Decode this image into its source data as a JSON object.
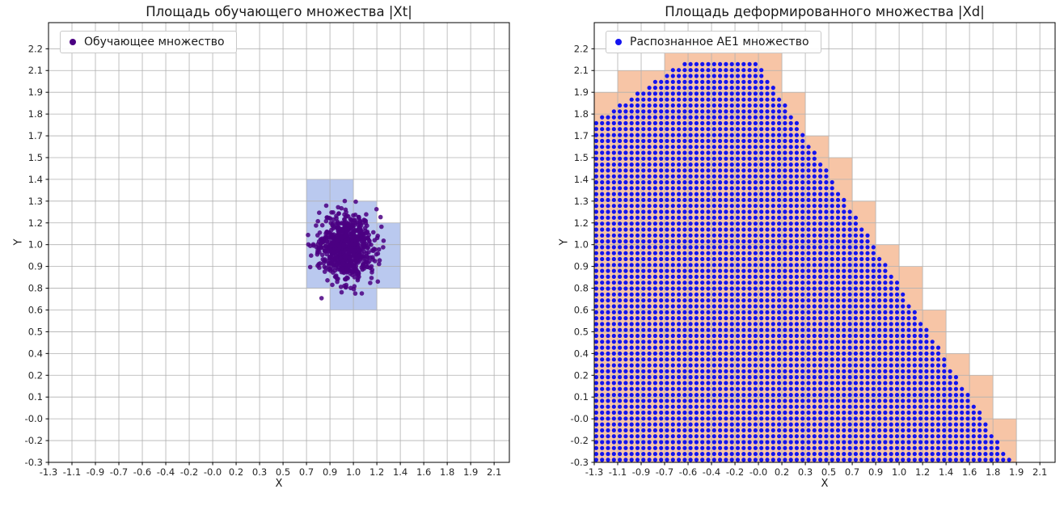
{
  "style": {
    "grid_color": "#b0b0b0",
    "spine_color": "#000000",
    "text_color": "#262626",
    "background": "#ffffff"
  },
  "chart_data": [
    {
      "type": "scatter",
      "title": "Площадь обучающего множества |Xt|",
      "legend": "Обучающее множество",
      "xlabel": "X",
      "ylabel": "Y",
      "grid": true,
      "legend_position": "upper left",
      "x_range": [
        -1.3,
        2.1
      ],
      "y_range": [
        -0.3,
        2.2
      ],
      "x_tick_labels": [
        "-1.3",
        "-1.1",
        "-0.9",
        "-0.7",
        "-0.6",
        "-0.4",
        "-0.2",
        "-0.0",
        "0.2",
        "0.3",
        "0.5",
        "0.7",
        "0.9",
        "1.0",
        "1.2",
        "1.4",
        "1.6",
        "1.8",
        "1.9",
        "2.1"
      ],
      "y_tick_labels": [
        "-0.3",
        "-0.2",
        "-0.0",
        "0.1",
        "0.2",
        "0.4",
        "0.5",
        "0.6",
        "0.8",
        "0.9",
        "1.0",
        "1.2",
        "1.3",
        "1.4",
        "1.5",
        "1.7",
        "1.8",
        "1.9",
        "2.1",
        "2.2"
      ],
      "point_color": "#4B0082",
      "cell_fill_color": "#bac9ef",
      "highlight_cells": [
        [
          11,
          12
        ],
        [
          12,
          12
        ],
        [
          11,
          11
        ],
        [
          12,
          11
        ],
        [
          13,
          11
        ],
        [
          11,
          10
        ],
        [
          12,
          10
        ],
        [
          13,
          10
        ],
        [
          14,
          10
        ],
        [
          11,
          9
        ],
        [
          12,
          9
        ],
        [
          13,
          9
        ],
        [
          14,
          9
        ],
        [
          11,
          8
        ],
        [
          12,
          8
        ],
        [
          13,
          8
        ],
        [
          14,
          8
        ],
        [
          12,
          7
        ],
        [
          13,
          7
        ]
      ],
      "scatter_distribution": {
        "kind": "gaussian-cluster",
        "center": [
          0.97,
          1.0
        ],
        "std": [
          0.105,
          0.1
        ],
        "count": 800,
        "seed": 12,
        "point_radius_px": 2.8
      }
    },
    {
      "type": "scatter",
      "title": "Площадь деформированного множества |Xd|",
      "legend": "Распознанное AE1 множество",
      "xlabel": "X",
      "ylabel": "Y",
      "grid": true,
      "legend_position": "upper left",
      "x_range": [
        -1.3,
        2.1
      ],
      "y_range": [
        -0.3,
        2.2
      ],
      "x_tick_labels": [
        "-1.3",
        "-1.1",
        "-0.9",
        "-0.7",
        "-0.6",
        "-0.4",
        "-0.2",
        "-0.0",
        "0.2",
        "0.3",
        "0.5",
        "0.7",
        "0.9",
        "1.0",
        "1.2",
        "1.4",
        "1.6",
        "1.8",
        "1.9",
        "2.1"
      ],
      "y_tick_labels": [
        "-0.3",
        "-0.2",
        "-0.0",
        "0.1",
        "0.2",
        "0.4",
        "0.5",
        "0.6",
        "0.8",
        "0.9",
        "1.0",
        "1.2",
        "1.3",
        "1.4",
        "1.5",
        "1.7",
        "1.8",
        "1.9",
        "2.1",
        "2.2"
      ],
      "point_color": "#1414f0",
      "cell_fill_color": "#f7c5a6",
      "dot_grid": {
        "spacing_x": 0.045,
        "spacing_y": 0.0357,
        "x_start": -1.285,
        "y_start": -0.285,
        "x_max": 1.87,
        "point_radius_px": 2.6
      },
      "region_boundary": [
        [
          -1.3,
          1.76
        ],
        [
          -0.62,
          2.12
        ],
        [
          -0.05,
          2.12
        ],
        [
          1.88,
          -0.3
        ]
      ]
    }
  ]
}
